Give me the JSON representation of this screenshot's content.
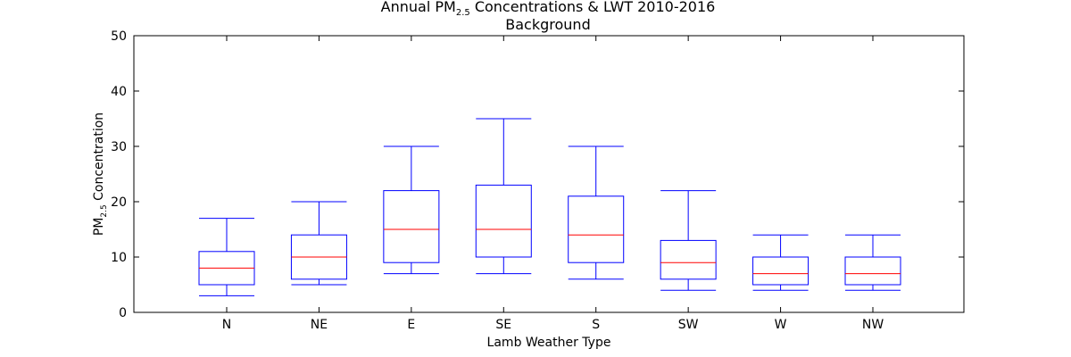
{
  "chart_data": {
    "type": "box",
    "title_line1": "Annual PM",
    "title_sub": "2.5",
    "title_line1_rest": " Concentrations & LWT 2010-2016",
    "title_line2": "Background",
    "xlabel": "Lamb Weather Type",
    "ylabel_main": "PM",
    "ylabel_sub": "2.5",
    "ylabel_rest": " Concentration",
    "ylim": [
      0,
      50
    ],
    "yticks": [
      0,
      10,
      20,
      30,
      40,
      50
    ],
    "grid": false,
    "colors": {
      "box": "#0000ff",
      "median": "#ff0000",
      "axis": "#000000"
    },
    "categories": [
      "N",
      "NE",
      "E",
      "SE",
      "S",
      "SW",
      "W",
      "NW"
    ],
    "boxes": [
      {
        "label": "N",
        "whisker_low": 3,
        "q1": 5,
        "median": 8,
        "q3": 11,
        "whisker_high": 17
      },
      {
        "label": "NE",
        "whisker_low": 5,
        "q1": 6,
        "median": 10,
        "q3": 14,
        "whisker_high": 20
      },
      {
        "label": "E",
        "whisker_low": 7,
        "q1": 9,
        "median": 15,
        "q3": 22,
        "whisker_high": 30
      },
      {
        "label": "SE",
        "whisker_low": 7,
        "q1": 10,
        "median": 15,
        "q3": 23,
        "whisker_high": 35
      },
      {
        "label": "S",
        "whisker_low": 6,
        "q1": 9,
        "median": 14,
        "q3": 21,
        "whisker_high": 30
      },
      {
        "label": "SW",
        "whisker_low": 4,
        "q1": 6,
        "median": 9,
        "q3": 13,
        "whisker_high": 22
      },
      {
        "label": "W",
        "whisker_low": 4,
        "q1": 5,
        "median": 7,
        "q3": 10,
        "whisker_high": 14
      },
      {
        "label": "NW",
        "whisker_low": 4,
        "q1": 5,
        "median": 7,
        "q3": 10,
        "whisker_high": 14
      }
    ]
  }
}
